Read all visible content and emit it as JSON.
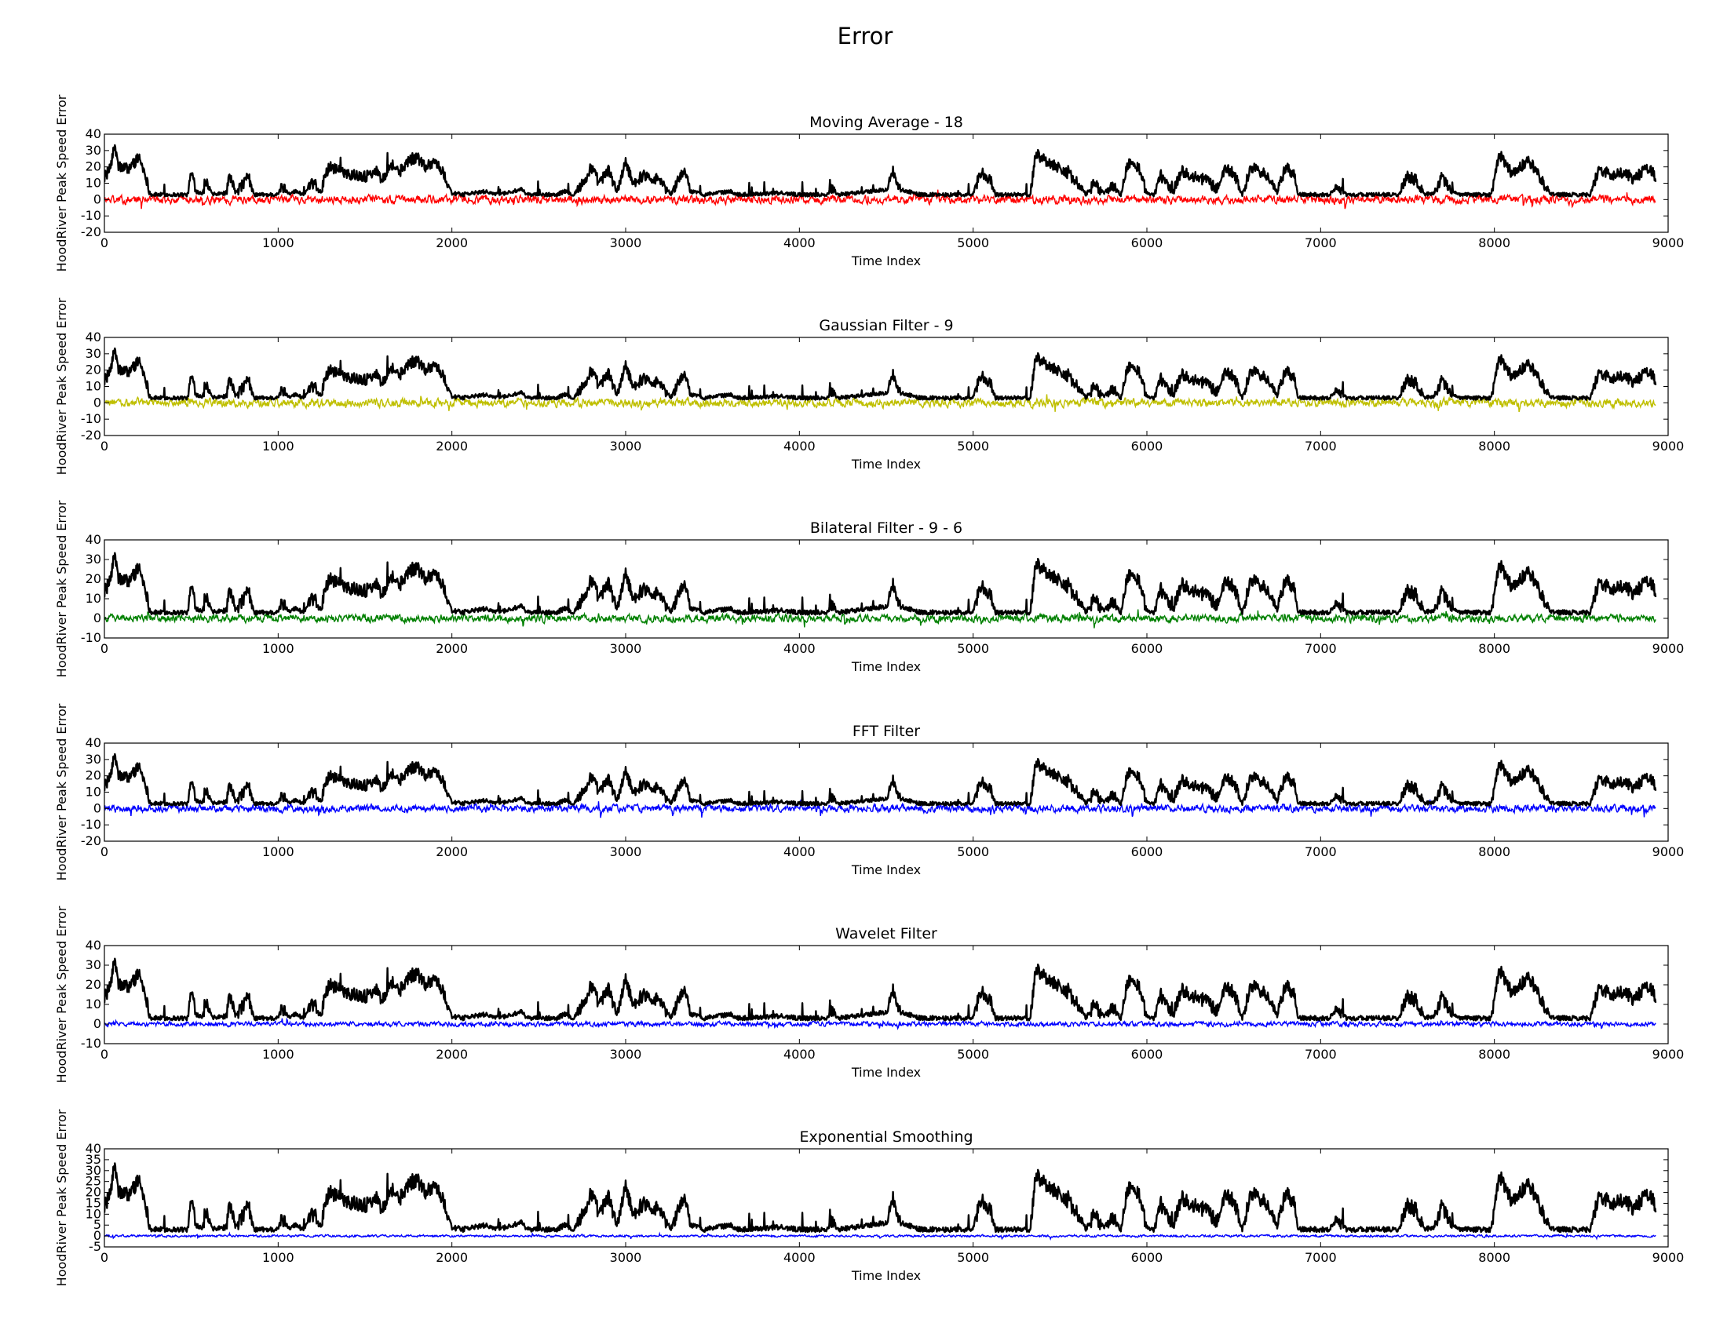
{
  "figure": {
    "title": "Error"
  },
  "colors": {
    "signal": "#000000",
    "red": "#ff0000",
    "yellow": "#bfbf00",
    "green": "#008000",
    "blue": "#0000ff"
  },
  "chart_data": [
    {
      "type": "line",
      "title": "Moving Average - 18",
      "xlabel": "Time Index",
      "ylabel": "HoodRiver Peak Speed Error",
      "xlim": [
        0,
        9000
      ],
      "ylim": [
        -20,
        40
      ],
      "xticks": [
        0,
        1000,
        2000,
        3000,
        4000,
        5000,
        6000,
        7000,
        8000,
        9000
      ],
      "yticks": [
        -20,
        -10,
        0,
        10,
        20,
        30,
        40
      ],
      "series": [
        {
          "role": "signal",
          "color": "#000000"
        },
        {
          "role": "error",
          "color": "#ff0000",
          "amplitude": 4
        }
      ]
    },
    {
      "type": "line",
      "title": "Gaussian Filter - 9",
      "xlabel": "Time Index",
      "ylabel": "HoodRiver Peak Speed Error",
      "xlim": [
        0,
        9000
      ],
      "ylim": [
        -20,
        40
      ],
      "xticks": [
        0,
        1000,
        2000,
        3000,
        4000,
        5000,
        6000,
        7000,
        8000,
        9000
      ],
      "yticks": [
        -20,
        -10,
        0,
        10,
        20,
        30,
        40
      ],
      "series": [
        {
          "role": "signal",
          "color": "#000000"
        },
        {
          "role": "error",
          "color": "#bfbf00",
          "amplitude": 4
        }
      ]
    },
    {
      "type": "line",
      "title": "Bilateral Filter - 9 - 6",
      "xlabel": "Time Index",
      "ylabel": "HoodRiver Peak Speed Error",
      "xlim": [
        0,
        9000
      ],
      "ylim": [
        -10,
        40
      ],
      "xticks": [
        0,
        1000,
        2000,
        3000,
        4000,
        5000,
        6000,
        7000,
        8000,
        9000
      ],
      "yticks": [
        -10,
        0,
        10,
        20,
        30,
        40
      ],
      "series": [
        {
          "role": "signal",
          "color": "#000000"
        },
        {
          "role": "error",
          "color": "#008000",
          "amplitude": 3
        }
      ]
    },
    {
      "type": "line",
      "title": "FFT Filter",
      "xlabel": "Time Index",
      "ylabel": "HoodRiver Peak Speed Error",
      "xlim": [
        0,
        9000
      ],
      "ylim": [
        -20,
        40
      ],
      "xticks": [
        0,
        1000,
        2000,
        3000,
        4000,
        5000,
        6000,
        7000,
        8000,
        9000
      ],
      "yticks": [
        -20,
        -10,
        0,
        10,
        20,
        30,
        40
      ],
      "series": [
        {
          "role": "signal",
          "color": "#000000"
        },
        {
          "role": "error",
          "color": "#0000ff",
          "amplitude": 3.5
        }
      ]
    },
    {
      "type": "line",
      "title": "Wavelet Filter",
      "xlabel": "Time Index",
      "ylabel": "HoodRiver Peak Speed Error",
      "xlim": [
        0,
        9000
      ],
      "ylim": [
        -10,
        40
      ],
      "xticks": [
        0,
        1000,
        2000,
        3000,
        4000,
        5000,
        6000,
        7000,
        8000,
        9000
      ],
      "yticks": [
        -10,
        0,
        10,
        20,
        30,
        40
      ],
      "series": [
        {
          "role": "signal",
          "color": "#000000"
        },
        {
          "role": "error",
          "color": "#0000ff",
          "amplitude": 1.8
        }
      ]
    },
    {
      "type": "line",
      "title": "Exponential Smoothing",
      "xlabel": "Time Index",
      "ylabel": "HoodRiver Peak Speed Error",
      "xlim": [
        0,
        9000
      ],
      "ylim": [
        -5,
        40
      ],
      "xticks": [
        0,
        1000,
        2000,
        3000,
        4000,
        5000,
        6000,
        7000,
        8000,
        9000
      ],
      "yticks": [
        -5,
        0,
        5,
        10,
        15,
        20,
        25,
        30,
        35,
        40
      ],
      "series": [
        {
          "role": "signal",
          "color": "#000000"
        },
        {
          "role": "error",
          "color": "#0000ff",
          "amplitude": 0.8
        }
      ]
    }
  ],
  "signal_profile": {
    "x_range": [
      0,
      8930
    ],
    "baseline": 2.5,
    "segments": [
      [
        0,
        14
      ],
      [
        30,
        18
      ],
      [
        60,
        33
      ],
      [
        80,
        20
      ],
      [
        140,
        19
      ],
      [
        200,
        26
      ],
      [
        240,
        14
      ],
      [
        260,
        3
      ],
      [
        480,
        3
      ],
      [
        500,
        17
      ],
      [
        530,
        5
      ],
      [
        560,
        4
      ],
      [
        590,
        10
      ],
      [
        620,
        3
      ],
      [
        700,
        4
      ],
      [
        720,
        13
      ],
      [
        760,
        5
      ],
      [
        800,
        10
      ],
      [
        830,
        14
      ],
      [
        860,
        3
      ],
      [
        1000,
        3
      ],
      [
        1020,
        8
      ],
      [
        1060,
        4
      ],
      [
        1100,
        5
      ],
      [
        1150,
        3
      ],
      [
        1200,
        10
      ],
      [
        1250,
        4
      ],
      [
        1270,
        16
      ],
      [
        1300,
        20
      ],
      [
        1400,
        16
      ],
      [
        1500,
        14
      ],
      [
        1560,
        18
      ],
      [
        1600,
        12
      ],
      [
        1650,
        22
      ],
      [
        1700,
        17
      ],
      [
        1750,
        24
      ],
      [
        1800,
        26
      ],
      [
        1850,
        20
      ],
      [
        1900,
        24
      ],
      [
        1950,
        16
      ],
      [
        2000,
        4
      ],
      [
        2060,
        3
      ],
      [
        2200,
        5
      ],
      [
        2260,
        3
      ],
      [
        2400,
        6
      ],
      [
        2440,
        3
      ],
      [
        2600,
        3
      ],
      [
        2650,
        5
      ],
      [
        2700,
        3
      ],
      [
        2770,
        12
      ],
      [
        2800,
        20
      ],
      [
        2850,
        10
      ],
      [
        2900,
        18
      ],
      [
        2950,
        5
      ],
      [
        3000,
        22
      ],
      [
        3050,
        10
      ],
      [
        3100,
        15
      ],
      [
        3200,
        12
      ],
      [
        3260,
        3
      ],
      [
        3330,
        18
      ],
      [
        3380,
        5
      ],
      [
        3450,
        3
      ],
      [
        3600,
        5
      ],
      [
        3650,
        3
      ],
      [
        3900,
        4
      ],
      [
        4000,
        3
      ],
      [
        4160,
        3
      ],
      [
        4190,
        8
      ],
      [
        4220,
        3
      ],
      [
        4500,
        6
      ],
      [
        4540,
        18
      ],
      [
        4580,
        6
      ],
      [
        4700,
        3
      ],
      [
        5000,
        3
      ],
      [
        5040,
        16
      ],
      [
        5100,
        12
      ],
      [
        5130,
        3
      ],
      [
        5330,
        3
      ],
      [
        5360,
        28
      ],
      [
        5450,
        22
      ],
      [
        5550,
        16
      ],
      [
        5600,
        10
      ],
      [
        5650,
        3
      ],
      [
        5700,
        10
      ],
      [
        5750,
        4
      ],
      [
        5800,
        8
      ],
      [
        5850,
        3
      ],
      [
        5890,
        22
      ],
      [
        5950,
        20
      ],
      [
        6000,
        4
      ],
      [
        6040,
        3
      ],
      [
        6080,
        15
      ],
      [
        6100,
        10
      ],
      [
        6150,
        5
      ],
      [
        6200,
        18
      ],
      [
        6250,
        14
      ],
      [
        6350,
        12
      ],
      [
        6400,
        6
      ],
      [
        6450,
        19
      ],
      [
        6500,
        16
      ],
      [
        6550,
        3
      ],
      [
        6600,
        20
      ],
      [
        6700,
        14
      ],
      [
        6750,
        4
      ],
      [
        6800,
        20
      ],
      [
        6850,
        15
      ],
      [
        6870,
        3
      ],
      [
        7050,
        3
      ],
      [
        7100,
        8
      ],
      [
        7150,
        3
      ],
      [
        7450,
        3
      ],
      [
        7500,
        14
      ],
      [
        7550,
        12
      ],
      [
        7600,
        3
      ],
      [
        7650,
        4
      ],
      [
        7700,
        14
      ],
      [
        7750,
        5
      ],
      [
        7800,
        3
      ],
      [
        7980,
        3
      ],
      [
        8030,
        28
      ],
      [
        8100,
        16
      ],
      [
        8200,
        24
      ],
      [
        8260,
        14
      ],
      [
        8320,
        4
      ],
      [
        8360,
        3
      ],
      [
        8550,
        3
      ],
      [
        8600,
        18
      ],
      [
        8680,
        15
      ],
      [
        8750,
        17
      ],
      [
        8800,
        12
      ],
      [
        8880,
        20
      ],
      [
        8930,
        14
      ]
    ]
  }
}
